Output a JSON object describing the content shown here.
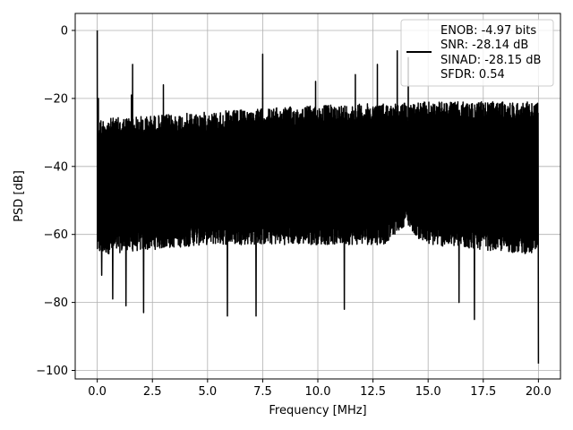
{
  "chart_data": {
    "type": "line",
    "xlabel": "Frequency [MHz]",
    "ylabel": "PSD [dB]",
    "xlim": [
      -1.0,
      21.0
    ],
    "ylim": [
      -102.5,
      5.0
    ],
    "xticks": [
      0.0,
      2.5,
      5.0,
      7.5,
      10.0,
      12.5,
      15.0,
      17.5,
      20.0
    ],
    "xtick_labels": [
      "0.0",
      "2.5",
      "5.0",
      "7.5",
      "10.0",
      "12.5",
      "15.0",
      "17.5",
      "20.0"
    ],
    "yticks": [
      0,
      -20,
      -40,
      -60,
      -80,
      -100
    ],
    "ytick_labels": [
      "0",
      "−20",
      "−40",
      "−60",
      "−80",
      "−100"
    ],
    "grid": true,
    "legend_position": "top-right",
    "legend_entries": [
      "ENOB: -4.97 bits",
      "SNR: -28.14 dB",
      "SINAD: -28.15 dB",
      "SFDR: 0.54"
    ],
    "series": [
      {
        "color": "#000000",
        "noise_band": {
          "x_start": 0.0,
          "x_end": 20.0,
          "upper_envelope": [
            [
              0.0,
              -26
            ],
            [
              5.0,
              -24
            ],
            [
              10.0,
              -22
            ],
            [
              15.0,
              -21
            ],
            [
              20.0,
              -21
            ]
          ],
          "lower_envelope": [
            [
              0.0,
              -66
            ],
            [
              5.0,
              -63
            ],
            [
              10.0,
              -63
            ],
            [
              13.0,
              -63
            ],
            [
              14.0,
              -57
            ],
            [
              14.8,
              -63
            ],
            [
              20.0,
              -66
            ]
          ]
        },
        "peaks": [
          {
            "x": 0.0,
            "y": 0
          },
          {
            "x": 0.05,
            "y": -20
          },
          {
            "x": 1.6,
            "y": -10
          },
          {
            "x": 1.55,
            "y": -19
          },
          {
            "x": 3.0,
            "y": -16
          },
          {
            "x": 7.5,
            "y": -7
          },
          {
            "x": 13.6,
            "y": -6
          },
          {
            "x": 14.1,
            "y": -8
          },
          {
            "x": 12.7,
            "y": -10
          },
          {
            "x": 11.7,
            "y": -13
          },
          {
            "x": 9.9,
            "y": -15
          }
        ],
        "dips": [
          {
            "x": 0.2,
            "y": -72
          },
          {
            "x": 0.7,
            "y": -79
          },
          {
            "x": 1.3,
            "y": -81
          },
          {
            "x": 2.1,
            "y": -83
          },
          {
            "x": 5.9,
            "y": -84
          },
          {
            "x": 7.2,
            "y": -84
          },
          {
            "x": 11.2,
            "y": -82
          },
          {
            "x": 16.4,
            "y": -80
          },
          {
            "x": 17.1,
            "y": -85
          },
          {
            "x": 20.0,
            "y": -98
          }
        ]
      }
    ]
  }
}
